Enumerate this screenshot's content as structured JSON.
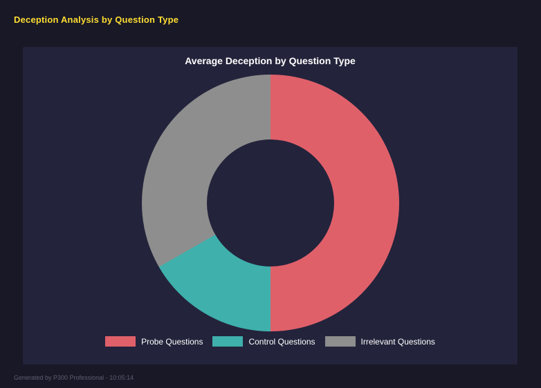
{
  "page": {
    "title": "Deception Analysis by Question Type",
    "footer": "Generated by P300 Professional - 10:05:14"
  },
  "chart_data": {
    "type": "pie",
    "subtype": "doughnut",
    "title": "Average Deception by Question Type",
    "labels": [
      "Probe Questions",
      "Control Questions",
      "Irrelevant Questions"
    ],
    "values_pct": [
      50.0,
      16.7,
      33.3
    ],
    "colors": [
      "#e0606a",
      "#3fb0ac",
      "#8e8e8e"
    ],
    "start_angle_deg": 0,
    "direction": "clockwise",
    "inner_radius_ratio": 0.5,
    "legend_position": "bottom"
  },
  "colors": {
    "page_background": "#181826",
    "panel_background": "#23233b",
    "page_title": "#ffdd33",
    "chart_title": "#ffffff",
    "legend_text": "#ffffff",
    "footer_text": "#5d5d70"
  }
}
